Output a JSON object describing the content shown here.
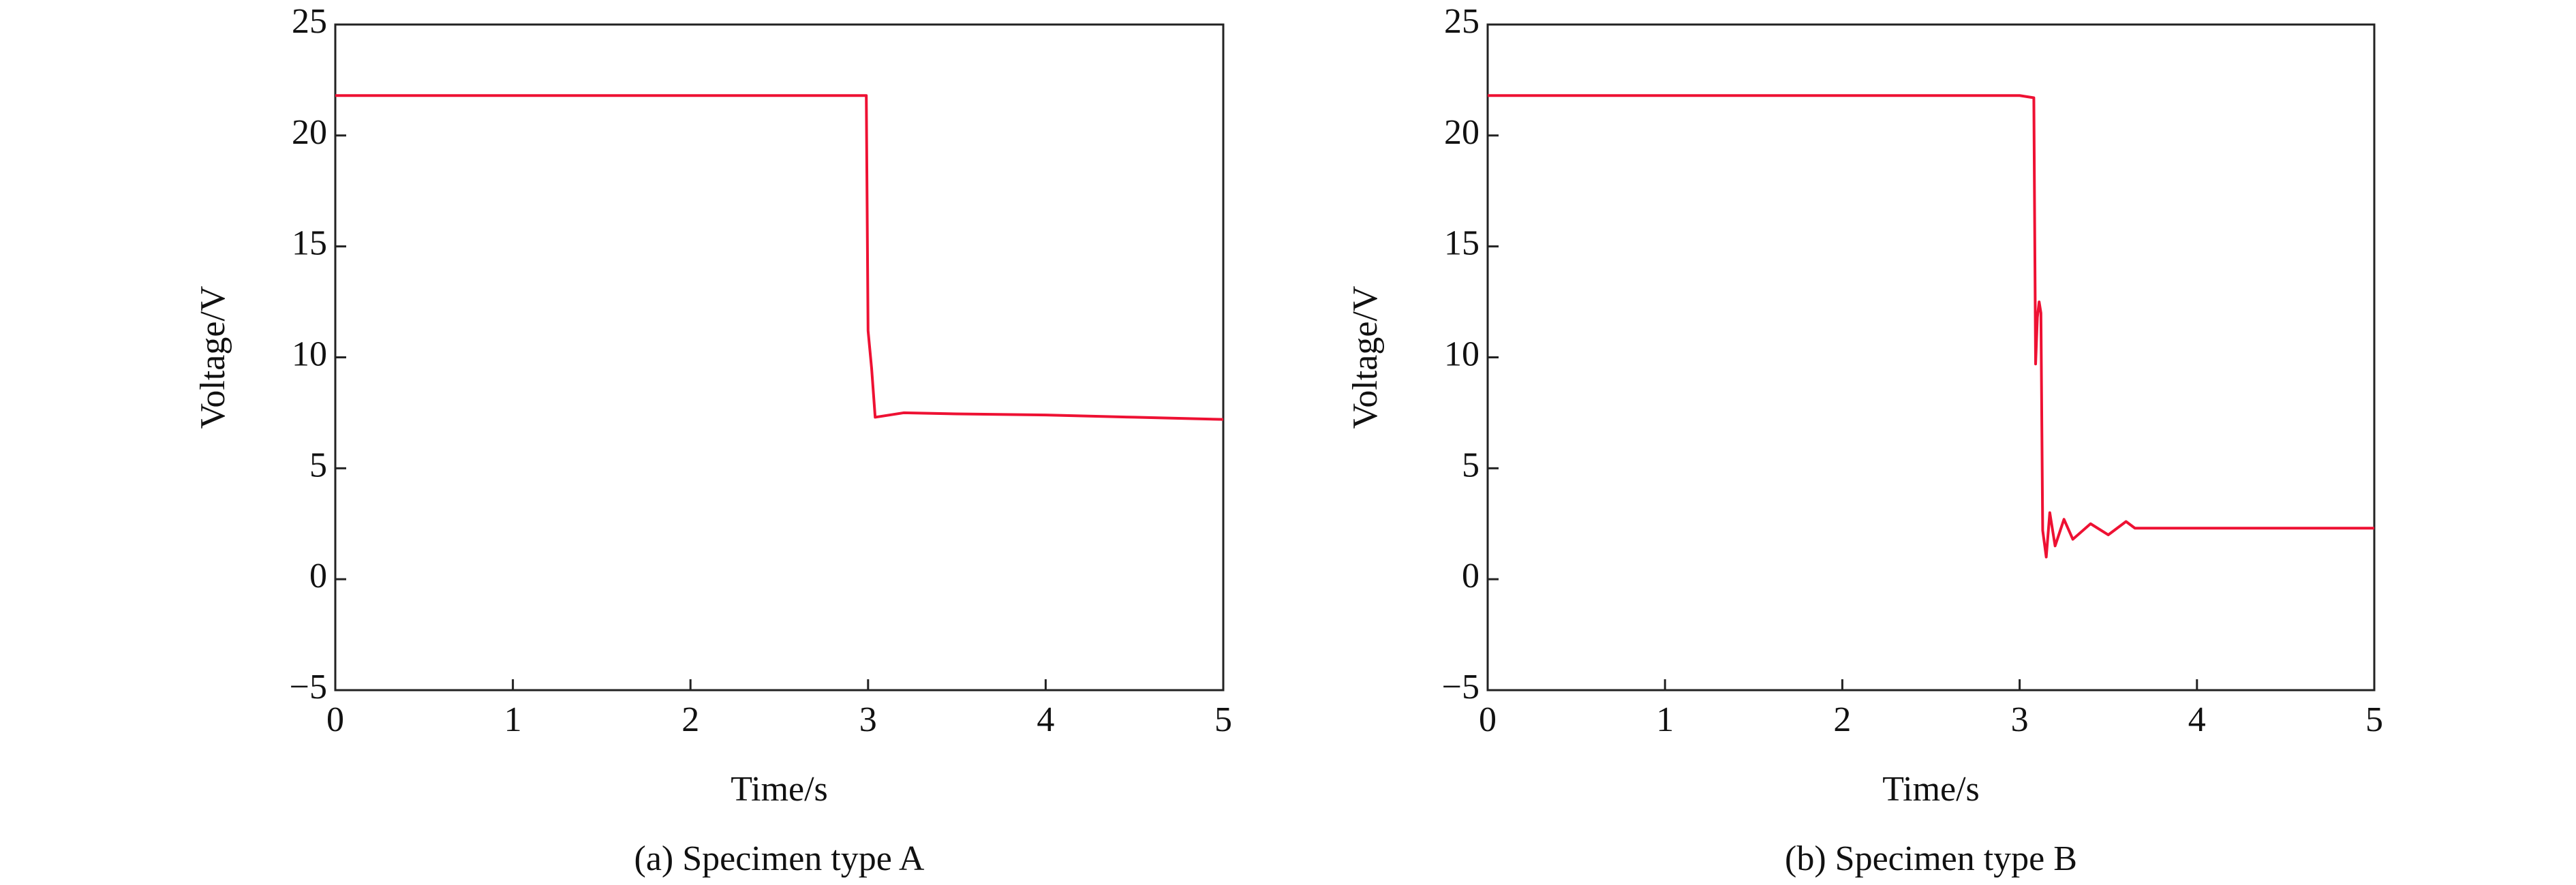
{
  "chart_data": [
    {
      "type": "line",
      "xlabel": "Time/s",
      "ylabel": "Voltage/V",
      "caption": "(a) Specimen type A",
      "x": [
        0,
        1,
        2,
        2.99,
        3.0,
        3.02,
        3.04,
        3.2,
        3.5,
        4,
        4.5,
        5
      ],
      "values": [
        21.8,
        21.8,
        21.8,
        21.8,
        11.2,
        9.5,
        7.3,
        7.5,
        7.45,
        7.4,
        7.3,
        7.2
      ],
      "color": "#ee1133",
      "xlim": [
        0,
        5
      ],
      "xticks": [
        0,
        1,
        2,
        3,
        4,
        5
      ],
      "ylim": [
        -5,
        25
      ],
      "yticks": [
        {
          "value": -5,
          "label": "−5"
        },
        0,
        5,
        10,
        15,
        20,
        25
      ]
    },
    {
      "type": "line",
      "xlabel": "Time/s",
      "ylabel": "Voltage/V",
      "caption": "(b) Specimen type B",
      "x": [
        0,
        1,
        2,
        3,
        3.08,
        3.09,
        3.1,
        3.11,
        3.12,
        3.13,
        3.15,
        3.17,
        3.2,
        3.25,
        3.3,
        3.4,
        3.5,
        3.6,
        3.65,
        4,
        4.5,
        5
      ],
      "values": [
        21.8,
        21.8,
        21.8,
        21.8,
        21.7,
        9.7,
        11.8,
        12.5,
        12.0,
        2.2,
        1.0,
        3.0,
        1.5,
        2.7,
        1.8,
        2.5,
        2.0,
        2.6,
        2.3,
        2.3,
        2.3,
        2.3
      ],
      "color": "#ee1133",
      "xlim": [
        0,
        5
      ],
      "xticks": [
        0,
        1,
        2,
        3,
        4,
        5
      ],
      "ylim": [
        -5,
        25
      ],
      "yticks": [
        {
          "value": -5,
          "label": "−5"
        },
        0,
        5,
        10,
        15,
        20,
        25
      ]
    }
  ]
}
